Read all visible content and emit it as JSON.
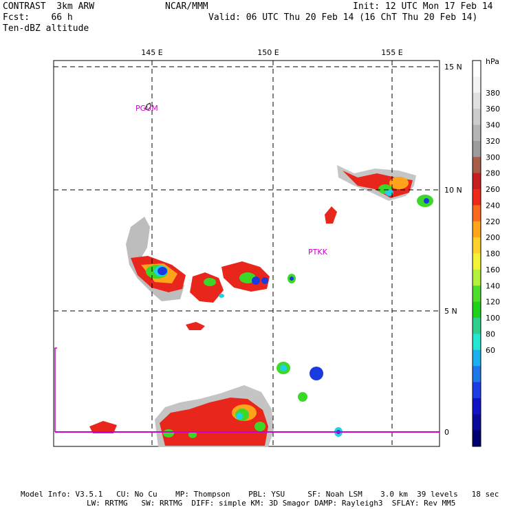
{
  "header": {
    "line1_left": "CONTRAST  3km ARW",
    "line1_center": "NCAR/MMM",
    "line1_right": "Init: 12 UTC Mon 17 Feb 14",
    "line2_left": "Fcst:    66 h",
    "line2_right": "Valid: 06 UTC Thu 20 Feb 14 (16 ChT Thu 20 Feb 14)",
    "line3_left": "Ten-dBZ altitude"
  },
  "map": {
    "lon_labels": [
      "145 E",
      "150 E",
      "155 E"
    ],
    "lat_labels": [
      "15 N",
      "10 N",
      "5 N",
      "0"
    ],
    "station_labels": [
      "PGUM",
      "PTKK"
    ],
    "colors": {
      "station": "#cc00cc",
      "border": "#000000",
      "equator": "#cc00cc"
    }
  },
  "colorbar": {
    "unit": "hPa",
    "tick_labels": [
      "380",
      "360",
      "340",
      "320",
      "300",
      "280",
      "260",
      "240",
      "220",
      "200",
      "180",
      "160",
      "140",
      "120",
      "100",
      "80",
      "60"
    ],
    "colors": [
      "#ffffff",
      "#f4f4f4",
      "#e0e0e0",
      "#cccccc",
      "#b4b4b4",
      "#9c9c9c",
      "#a85d48",
      "#c81e1e",
      "#ef2a1a",
      "#fb6a20",
      "#ffa51a",
      "#fdd12a",
      "#f2f535",
      "#b5f03a",
      "#4ddd2a",
      "#1ed21a",
      "#2cd08c",
      "#25e6d0",
      "#1cb0f0",
      "#1e78e8",
      "#1d3ce6",
      "#1212c8",
      "#0a0a9a",
      "#000070"
    ]
  },
  "footer": {
    "line1": "Model Info: V3.5.1   CU: No Cu    MP: Thompson    PBL: YSU     SF: Noah LSM    3.0 km  39 levels   18 sec",
    "line2": "LW: RRTMG   SW: RRTMG  DIFF: simple KM: 3D Smagor DAMP: Rayleigh3  SFLAY: Rev MM5"
  }
}
